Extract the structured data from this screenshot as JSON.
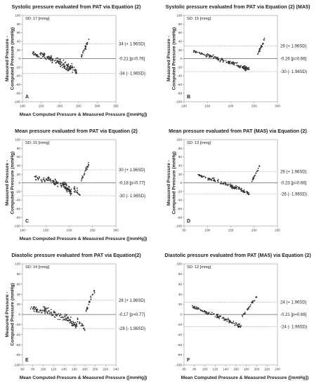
{
  "chart_data": [
    {
      "type": "scatter",
      "letter": "A",
      "title": "Systolic pressure evaluated from PAT via Equation (2)",
      "sd_label": "SD: 17 [mmg]",
      "xlabel": "Mean Computed Pressure & Measured Pressure ([mmHg])",
      "ylabel": "Measured Pressure - Computed Pressure (mmHg)",
      "xlim": [
        100,
        350
      ],
      "ylim": [
        -100,
        100
      ],
      "xticks": [
        100,
        150,
        200,
        250,
        300,
        350
      ],
      "yticks": [
        -100,
        -80,
        -60,
        -40,
        -20,
        0,
        20,
        40,
        60,
        80,
        100
      ],
      "lines": [
        {
          "y": 34,
          "label": "34 (+ 1.96SD)",
          "style": "dashed"
        },
        {
          "y": -0.21,
          "label": "-0.21 [p=0.76]",
          "style": "solid"
        },
        {
          "y": -34,
          "label": "-34 (- 1.96SD)",
          "style": "dashed"
        }
      ],
      "clusters": [
        {
          "x": [
            125,
            145
          ],
          "y": [
            14,
            4
          ],
          "spread": 6,
          "n": 22
        },
        {
          "x": [
            145,
            190
          ],
          "y": [
            10,
            -6
          ],
          "spread": 10,
          "n": 55
        },
        {
          "x": [
            190,
            230
          ],
          "y": [
            -4,
            -24
          ],
          "spread": 12,
          "n": 75
        },
        {
          "x": [
            230,
            245
          ],
          "y": [
            -18,
            -34
          ],
          "spread": 12,
          "n": 22
        },
        {
          "x": [
            258,
            280
          ],
          "y": [
            8,
            48
          ],
          "spread": 9,
          "n": 26
        }
      ]
    },
    {
      "type": "scatter",
      "letter": "B",
      "title": "Systolic pressure evaluated from PAT via Equation (2) (MA5)",
      "sd_label": "SD: 15 [mmg]",
      "xlabel": "",
      "ylabel": "Measured Pressure - Computed Pressure (mmHg)",
      "xlim": [
        100,
        300
      ],
      "ylim": [
        -100,
        100
      ],
      "xticks": [
        100,
        150,
        200,
        250,
        300
      ],
      "yticks": [
        -100,
        -80,
        -60,
        -40,
        -20,
        0,
        20,
        40,
        60,
        80,
        100
      ],
      "lines": [
        {
          "y": 29,
          "label": "29 (+ 1.96SD)",
          "style": "dashed"
        },
        {
          "y": -0.26,
          "label": "-0.26 [p=0.66]",
          "style": "solid"
        },
        {
          "y": -30,
          "label": "-30 (- 1.96SD)",
          "style": "dashed"
        }
      ],
      "clusters": [
        {
          "x": [
            120,
            150
          ],
          "y": [
            18,
            6
          ],
          "spread": 4,
          "n": 30
        },
        {
          "x": [
            150,
            200
          ],
          "y": [
            8,
            -10
          ],
          "spread": 6,
          "n": 60
        },
        {
          "x": [
            200,
            240
          ],
          "y": [
            -8,
            -26
          ],
          "spread": 7,
          "n": 70
        },
        {
          "x": [
            255,
            272
          ],
          "y": [
            4,
            44
          ],
          "spread": 6,
          "n": 24
        }
      ]
    },
    {
      "type": "scatter",
      "letter": "C",
      "title": "Mean pressure evaluated from PAT via Equation (2)",
      "sd_label": "SD: 15 [mmg]",
      "xlabel": "Mean Computed Pressure & Measured Pressure ([mmHg])",
      "ylabel": "Measured Pressure - Computed Pressure (mmHg)",
      "xlim": [
        100,
        300
      ],
      "ylim": [
        -100,
        100
      ],
      "xticks": [
        100,
        150,
        200,
        250,
        300
      ],
      "yticks": [
        -100,
        -80,
        -60,
        -40,
        -20,
        0,
        20,
        40,
        60,
        80,
        100
      ],
      "lines": [
        {
          "y": 30,
          "label": "30 (+ 1.96SD)",
          "style": "dashed"
        },
        {
          "y": -0.18,
          "label": "-0.18 [p=0.77]",
          "style": "solid"
        },
        {
          "y": -30,
          "label": "-30 (- 1.96SD)",
          "style": "dashed"
        }
      ],
      "clusters": [
        {
          "x": [
            125,
            150
          ],
          "y": [
            14,
            4
          ],
          "spread": 7,
          "n": 22
        },
        {
          "x": [
            150,
            185
          ],
          "y": [
            10,
            -6
          ],
          "spread": 9,
          "n": 55
        },
        {
          "x": [
            185,
            205
          ],
          "y": [
            -2,
            -22
          ],
          "spread": 11,
          "n": 70
        },
        {
          "x": [
            210,
            225
          ],
          "y": [
            -14,
            -30
          ],
          "spread": 10,
          "n": 18
        },
        {
          "x": [
            225,
            242
          ],
          "y": [
            6,
            44
          ],
          "spread": 8,
          "n": 24
        }
      ]
    },
    {
      "type": "scatter",
      "letter": "D",
      "title": "Mean pressure evaluated from PAT (MA5) via Equation (2)",
      "sd_label": "SD: 13 [mmg]",
      "xlabel": "",
      "ylabel": "Measured Pressure - Computed Pressure (mmHg)",
      "xlim": [
        50,
        250
      ],
      "ylim": [
        -100,
        100
      ],
      "xticks": [
        50,
        100,
        150,
        200,
        250
      ],
      "yticks": [
        -100,
        -80,
        -60,
        -40,
        -20,
        0,
        20,
        40,
        60,
        80,
        100
      ],
      "lines": [
        {
          "y": 26,
          "label": "26 (+ 1.96SD)",
          "style": "dashed"
        },
        {
          "y": -0.23,
          "label": "-0.23 [p=0.66]",
          "style": "solid"
        },
        {
          "y": -26,
          "label": "-26 (- 1.96SD)",
          "style": "dashed"
        }
      ],
      "clusters": [
        {
          "x": [
            80,
            110
          ],
          "y": [
            18,
            6
          ],
          "spread": 4,
          "n": 30
        },
        {
          "x": [
            110,
            160
          ],
          "y": [
            8,
            -12
          ],
          "spread": 6,
          "n": 60
        },
        {
          "x": [
            160,
            190
          ],
          "y": [
            -10,
            -26
          ],
          "spread": 6,
          "n": 50
        },
        {
          "x": [
            195,
            212
          ],
          "y": [
            4,
            38
          ],
          "spread": 5,
          "n": 24
        }
      ]
    },
    {
      "type": "scatter",
      "letter": "E",
      "title": "Diastolic pressure evaluated from PAT via Equation(2)",
      "sd_label": "SD: 14 [mmg]",
      "xlabel": "Mean Computed Pressure & Measured Pressure ([mmHg])",
      "ylabel": "Measured Pressure - Computed Pressure (mmHg)",
      "xlim": [
        60,
        240
      ],
      "ylim": [
        -100,
        100
      ],
      "xticks": [
        60,
        80,
        100,
        120,
        140,
        160,
        180,
        200,
        220,
        240
      ],
      "yticks": [
        -100,
        -80,
        -60,
        -40,
        -20,
        0,
        20,
        40,
        60,
        80,
        100
      ],
      "lines": [
        {
          "y": 28,
          "label": "28 (+ 1.96SD)",
          "style": "dashed"
        },
        {
          "y": -0.17,
          "label": "-0.17 [p=0.77]",
          "style": "solid"
        },
        {
          "y": -28,
          "label": "-28 (- 1.96SD)",
          "style": "dashed"
        }
      ],
      "clusters": [
        {
          "x": [
            75,
            100
          ],
          "y": [
            14,
            4
          ],
          "spread": 8,
          "n": 30
        },
        {
          "x": [
            100,
            140
          ],
          "y": [
            10,
            -8
          ],
          "spread": 10,
          "n": 60
        },
        {
          "x": [
            140,
            165
          ],
          "y": [
            -4,
            -24
          ],
          "spread": 10,
          "n": 60
        },
        {
          "x": [
            165,
            180
          ],
          "y": [
            -10,
            -28
          ],
          "spread": 10,
          "n": 18
        },
        {
          "x": [
            182,
            200
          ],
          "y": [
            6,
            50
          ],
          "spread": 8,
          "n": 24
        }
      ]
    },
    {
      "type": "scatter",
      "letter": "F",
      "title": "Diastolic pressure evaluated from PAT (MA5) via Equation (2)",
      "sd_label": "SD: 12 [mmg]",
      "xlabel": "Mean Computed Pressure & Measured Pressure ([mmHg])",
      "ylabel": "",
      "xlim": [
        60,
        240
      ],
      "ylim": [
        -100,
        100
      ],
      "xticks": [
        60,
        80,
        100,
        120,
        140,
        160,
        180,
        200,
        220,
        240
      ],
      "yticks": [
        -100,
        -80,
        -60,
        -40,
        -20,
        0,
        20,
        40,
        60,
        80,
        100
      ],
      "lines": [
        {
          "y": 24,
          "label": "24 (+ 1.96SD)",
          "style": "dashed"
        },
        {
          "y": -0.21,
          "label": "-0.21 [p=0.66]",
          "style": "solid"
        },
        {
          "y": -24,
          "label": "-24 (- 1.96SD)",
          "style": "dashed"
        }
      ],
      "clusters": [
        {
          "x": [
            75,
            100
          ],
          "y": [
            16,
            6
          ],
          "spread": 4,
          "n": 30
        },
        {
          "x": [
            100,
            140
          ],
          "y": [
            6,
            -10
          ],
          "spread": 5,
          "n": 50
        },
        {
          "x": [
            140,
            170
          ],
          "y": [
            -10,
            -24
          ],
          "spread": 6,
          "n": 45
        },
        {
          "x": [
            172,
            200
          ],
          "y": [
            -4,
            36
          ],
          "spread": 5,
          "n": 32
        }
      ]
    }
  ]
}
